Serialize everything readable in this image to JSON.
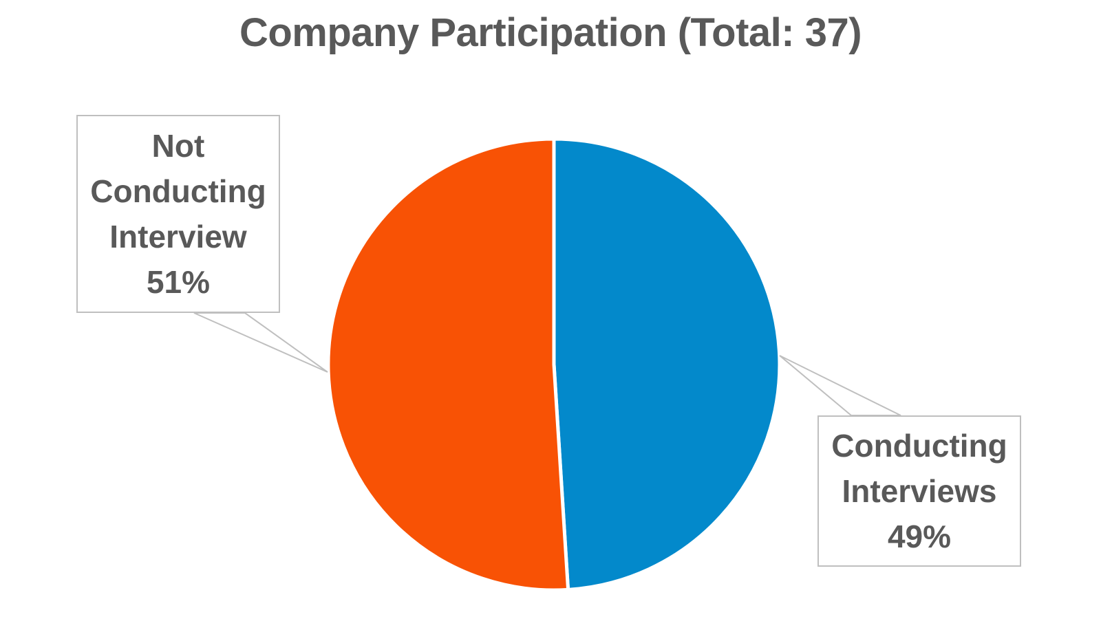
{
  "chart_data": {
    "type": "pie",
    "title": "Company Participation (Total: 37)",
    "slices": [
      {
        "label": "Conducting Interviews",
        "value": 49,
        "percent_label": "49%",
        "color": "#0389CB"
      },
      {
        "label": "Not Conducting Interview",
        "value": 51,
        "percent_label": "51%",
        "color": "#F85205"
      }
    ],
    "start_angle": "12 o'clock",
    "direction": "clockwise",
    "label_style": "callout boxes with leader lines",
    "legend": "none"
  }
}
